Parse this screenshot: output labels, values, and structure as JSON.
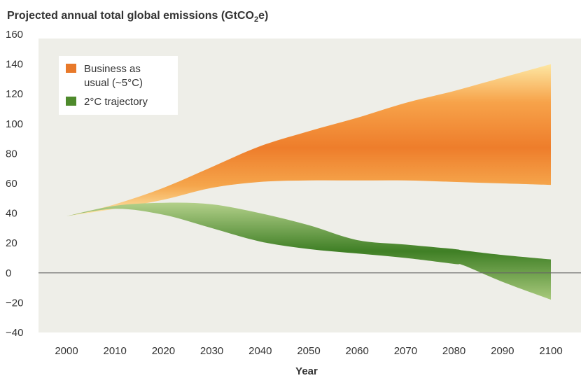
{
  "chart_data": {
    "type": "area",
    "title": "Projected annual total global emissions (GtCO",
    "title_sub": "2",
    "title_tail": "e)",
    "xlabel": "Year",
    "ylabel": "",
    "xlim": [
      2000,
      2100
    ],
    "ylim": [
      -40,
      160
    ],
    "x_ticks": [
      2000,
      2010,
      2020,
      2030,
      2040,
      2050,
      2060,
      2070,
      2080,
      2090,
      2100
    ],
    "y_ticks": [
      160,
      140,
      120,
      100,
      80,
      60,
      40,
      20,
      0,
      -20,
      -40
    ],
    "y_tick_labels": [
      "160",
      "140",
      "120",
      "100",
      "80",
      "60",
      "40",
      "20",
      "0",
      "−20",
      "−40"
    ],
    "legend_position": "top-left",
    "series": [
      {
        "name": "Business as usual (~5°C)",
        "legend_lines": [
          "Business as",
          "usual (~5°C)"
        ],
        "color": "#e8792a",
        "x": [
          2000,
          2010,
          2020,
          2030,
          2040,
          2050,
          2060,
          2070,
          2080,
          2090,
          2100
        ],
        "upper": [
          38,
          46,
          57,
          71,
          85,
          95,
          104,
          114,
          122,
          131,
          140
        ],
        "lower": [
          38,
          43,
          49,
          57,
          61,
          62,
          62,
          62,
          61,
          60,
          59
        ]
      },
      {
        "name": "2°C trajectory",
        "legend_lines": [
          "2°C trajectory"
        ],
        "color": "#4e8a2c",
        "x": [
          2000,
          2010,
          2020,
          2030,
          2040,
          2050,
          2060,
          2070,
          2080,
          2082,
          2090,
          2100
        ],
        "upper": [
          38,
          45,
          47,
          46,
          40,
          32,
          22,
          19,
          16,
          15,
          12,
          9
        ],
        "lower": [
          38,
          43,
          39,
          30,
          21,
          16,
          13,
          10,
          6,
          5,
          -6,
          -18
        ]
      }
    ],
    "grid": false,
    "zero_line": true
  }
}
